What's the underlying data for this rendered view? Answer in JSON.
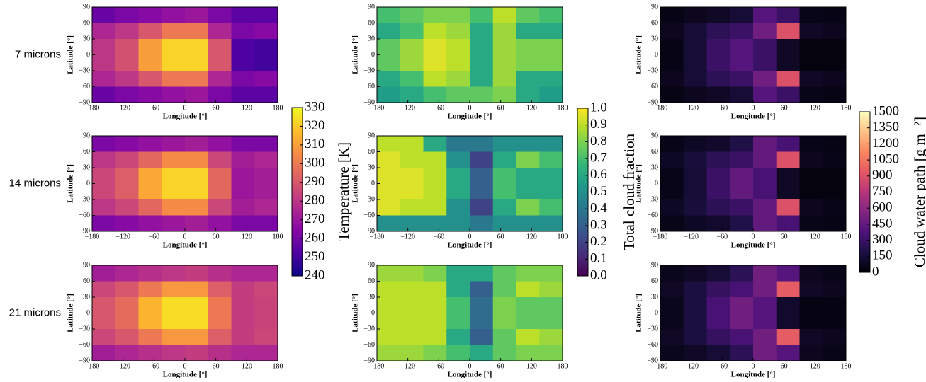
{
  "chart_data": [
    {
      "type": "heatmap",
      "colormap": "plasma",
      "xlabel": "Longitude [°]",
      "ylabel": "Latitude [°]",
      "xlim": [
        -180,
        180
      ],
      "ylim": [
        -90,
        90
      ],
      "xticks": [
        {
          "value": -180,
          "label": "−180"
        },
        {
          "value": -120,
          "label": "−120"
        },
        {
          "value": -60,
          "label": "−60"
        },
        0,
        60,
        120,
        180
      ],
      "yticks": [
        {
          "value": -90,
          "label": "−90"
        },
        {
          "value": -60,
          "label": "−60"
        },
        {
          "value": -30,
          "label": "−30"
        },
        0,
        30,
        60,
        90
      ],
      "xbins": [
        -180,
        -135,
        -90,
        -45,
        0,
        45,
        90,
        135,
        180
      ],
      "ybins": [
        90,
        60,
        30,
        0,
        -30,
        -60,
        -90
      ],
      "colorbar": {
        "label": "Temperature [K]",
        "lim": [
          240,
          330
        ],
        "ticks": [
          240,
          250,
          260,
          270,
          280,
          290,
          300,
          310,
          320,
          330
        ]
      },
      "panels": [
        {
          "label": "7 microns",
          "values": [
            [
              258,
              262,
              265,
              268,
              270,
              262,
              255,
              255
            ],
            [
              275,
              280,
              290,
              300,
              300,
              275,
              262,
              265
            ],
            [
              280,
              288,
              310,
              322,
              322,
              290,
              252,
              250
            ],
            [
              280,
              288,
              310,
              322,
              322,
              290,
              252,
              250
            ],
            [
              275,
              280,
              290,
              300,
              300,
              275,
              262,
              265
            ],
            [
              258,
              262,
              265,
              268,
              270,
              262,
              255,
              255
            ]
          ]
        },
        {
          "label": "14 microns",
          "values": [
            [
              262,
              265,
              268,
              270,
              272,
              268,
              262,
              262
            ],
            [
              280,
              285,
              295,
              305,
              305,
              285,
              272,
              275
            ],
            [
              285,
              292,
              312,
              322,
              322,
              295,
              270,
              272
            ],
            [
              285,
              292,
              312,
              322,
              322,
              295,
              270,
              272
            ],
            [
              280,
              285,
              295,
              305,
              305,
              285,
              272,
              275
            ],
            [
              262,
              265,
              268,
              270,
              272,
              268,
              262,
              262
            ]
          ]
        },
        {
          "label": "21 microns",
          "values": [
            [
              272,
              275,
              278,
              280,
              282,
              278,
              275,
              275
            ],
            [
              285,
              290,
              300,
              308,
              308,
              292,
              282,
              285
            ],
            [
              290,
              296,
              315,
              324,
              324,
              300,
              282,
              284
            ],
            [
              290,
              296,
              315,
              324,
              324,
              300,
              282,
              284
            ],
            [
              285,
              290,
              300,
              308,
              308,
              292,
              282,
              285
            ],
            [
              272,
              275,
              278,
              280,
              282,
              278,
              275,
              275
            ]
          ]
        }
      ]
    },
    {
      "type": "heatmap",
      "colormap": "viridis",
      "xlabel": "Longitude [°]",
      "ylabel": "Latitude [°]",
      "xlim": [
        -180,
        180
      ],
      "ylim": [
        -90,
        90
      ],
      "xticks": [
        {
          "value": -180,
          "label": "−180"
        },
        {
          "value": -120,
          "label": "−120"
        },
        {
          "value": -60,
          "label": "−60"
        },
        0,
        60,
        120,
        180
      ],
      "yticks": [
        {
          "value": -90,
          "label": "−90"
        },
        {
          "value": -60,
          "label": "−60"
        },
        {
          "value": -30,
          "label": "−30"
        },
        0,
        30,
        60,
        90
      ],
      "xbins": [
        -180,
        -135,
        -90,
        -45,
        0,
        45,
        90,
        135,
        180
      ],
      "ybins": [
        90,
        60,
        30,
        0,
        -30,
        -60,
        -90
      ],
      "colorbar": {
        "label": "Total cloud fraction",
        "lim": [
          0,
          1
        ],
        "ticks": [
          {
            "value": 0,
            "label": "0.0"
          },
          0.1,
          0.2,
          0.3,
          0.4,
          0.5,
          0.6,
          0.7,
          0.8,
          0.9,
          {
            "value": 1,
            "label": "1.0"
          }
        ]
      },
      "panels": [
        {
          "values": [
            [
              0.7,
              0.75,
              0.8,
              0.8,
              0.7,
              0.9,
              0.75,
              0.7
            ],
            [
              0.6,
              0.7,
              0.9,
              0.85,
              0.6,
              0.85,
              0.6,
              0.6
            ],
            [
              0.75,
              0.85,
              0.95,
              0.9,
              0.6,
              0.85,
              0.8,
              0.8
            ],
            [
              0.75,
              0.85,
              0.95,
              0.9,
              0.6,
              0.85,
              0.8,
              0.8
            ],
            [
              0.6,
              0.7,
              0.9,
              0.85,
              0.6,
              0.85,
              0.6,
              0.6
            ],
            [
              0.55,
              0.6,
              0.7,
              0.75,
              0.75,
              0.8,
              0.6,
              0.55
            ]
          ]
        },
        {
          "values": [
            [
              0.9,
              0.9,
              0.6,
              0.4,
              0.4,
              0.5,
              0.5,
              0.5
            ],
            [
              0.95,
              0.9,
              0.9,
              0.5,
              0.2,
              0.6,
              0.8,
              0.7
            ],
            [
              0.95,
              0.95,
              0.9,
              0.6,
              0.3,
              0.7,
              0.6,
              0.6
            ],
            [
              0.95,
              0.95,
              0.9,
              0.6,
              0.3,
              0.7,
              0.6,
              0.6
            ],
            [
              0.95,
              0.9,
              0.9,
              0.5,
              0.2,
              0.6,
              0.8,
              0.7
            ],
            [
              0.5,
              0.5,
              0.5,
              0.5,
              0.4,
              0.5,
              0.5,
              0.5
            ]
          ]
        },
        {
          "values": [
            [
              0.85,
              0.85,
              0.8,
              0.6,
              0.6,
              0.75,
              0.8,
              0.8
            ],
            [
              0.9,
              0.9,
              0.9,
              0.6,
              0.3,
              0.75,
              0.9,
              0.85
            ],
            [
              0.9,
              0.9,
              0.9,
              0.7,
              0.35,
              0.8,
              0.75,
              0.75
            ],
            [
              0.9,
              0.9,
              0.9,
              0.7,
              0.35,
              0.8,
              0.75,
              0.75
            ],
            [
              0.9,
              0.9,
              0.9,
              0.6,
              0.3,
              0.75,
              0.9,
              0.85
            ],
            [
              0.85,
              0.85,
              0.8,
              0.7,
              0.6,
              0.75,
              0.8,
              0.8
            ]
          ]
        }
      ]
    },
    {
      "type": "heatmap",
      "colormap": "magma",
      "xlabel": "Longitude [°]",
      "ylabel": "Latitude [°]",
      "xlim": [
        -180,
        180
      ],
      "ylim": [
        -90,
        90
      ],
      "xticks": [
        {
          "value": -180,
          "label": "−180"
        },
        {
          "value": -120,
          "label": "−120"
        },
        {
          "value": -60,
          "label": "−60"
        },
        0,
        60,
        120,
        180
      ],
      "yticks": [
        {
          "value": -90,
          "label": "−90"
        },
        {
          "value": -60,
          "label": "−60"
        },
        {
          "value": -30,
          "label": "−30"
        },
        0,
        30,
        60,
        90
      ],
      "xbins": [
        -180,
        -135,
        -90,
        -45,
        0,
        45,
        90,
        135,
        180
      ],
      "ybins": [
        90,
        60,
        30,
        0,
        -30,
        -60,
        -90
      ],
      "colorbar": {
        "label": "Cloud water path [g m⁻²]",
        "lim": [
          0,
          1500
        ],
        "ticks": [
          0,
          150,
          300,
          450,
          600,
          750,
          900,
          1050,
          1200,
          1350,
          1500
        ]
      },
      "panels": [
        {
          "values": [
            [
              50,
              80,
              100,
              150,
              400,
              300,
              60,
              50
            ],
            [
              80,
              150,
              250,
              300,
              500,
              900,
              100,
              80
            ],
            [
              50,
              150,
              300,
              400,
              300,
              100,
              30,
              30
            ],
            [
              50,
              150,
              300,
              400,
              300,
              100,
              30,
              30
            ],
            [
              80,
              150,
              250,
              300,
              500,
              900,
              100,
              80
            ],
            [
              50,
              80,
              100,
              150,
              400,
              300,
              60,
              50
            ]
          ]
        },
        {
          "values": [
            [
              60,
              90,
              120,
              200,
              450,
              350,
              60,
              50
            ],
            [
              90,
              160,
              250,
              300,
              450,
              900,
              80,
              60
            ],
            [
              60,
              150,
              300,
              450,
              350,
              100,
              30,
              30
            ],
            [
              60,
              150,
              300,
              450,
              350,
              100,
              30,
              30
            ],
            [
              90,
              160,
              250,
              300,
              450,
              900,
              80,
              60
            ],
            [
              60,
              90,
              120,
              200,
              450,
              350,
              60,
              50
            ]
          ]
        },
        {
          "values": [
            [
              70,
              100,
              150,
              250,
              500,
              400,
              80,
              60
            ],
            [
              100,
              180,
              280,
              350,
              500,
              950,
              100,
              80
            ],
            [
              70,
              180,
              350,
              500,
              400,
              120,
              40,
              40
            ],
            [
              70,
              180,
              350,
              500,
              400,
              120,
              40,
              40
            ],
            [
              100,
              180,
              280,
              350,
              500,
              950,
              100,
              80
            ],
            [
              70,
              100,
              150,
              250,
              500,
              400,
              80,
              60
            ]
          ]
        }
      ]
    }
  ]
}
